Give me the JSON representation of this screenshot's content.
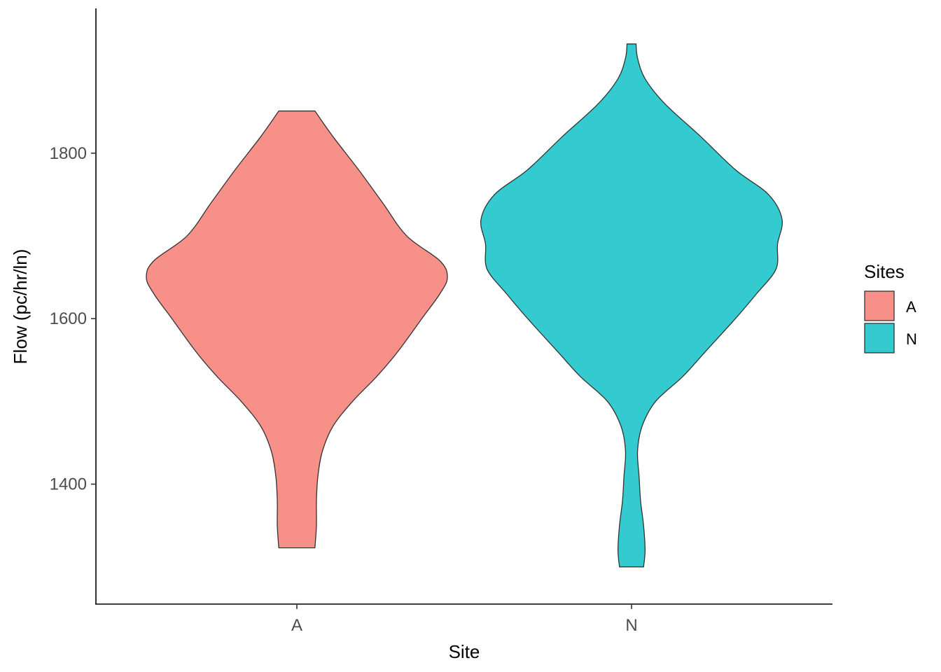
{
  "chart_data": {
    "type": "violin",
    "xlabel": "Site",
    "ylabel": "Flow (pc/hr/ln)",
    "ylim": [
      1255,
      1975
    ],
    "yticks": [
      1400,
      1600,
      1800
    ],
    "categories": [
      "A",
      "N"
    ],
    "legend": {
      "title": "Sites",
      "position": "right",
      "entries": [
        "A",
        "N"
      ]
    },
    "grid": false,
    "series": [
      {
        "name": "A",
        "color": "#F8908A",
        "min": 1323,
        "max": 1851,
        "density": [
          [
            1323,
            0.12
          ],
          [
            1350,
            0.13
          ],
          [
            1380,
            0.13
          ],
          [
            1410,
            0.14
          ],
          [
            1440,
            0.17
          ],
          [
            1470,
            0.24
          ],
          [
            1500,
            0.37
          ],
          [
            1530,
            0.53
          ],
          [
            1560,
            0.67
          ],
          [
            1600,
            0.83
          ],
          [
            1630,
            0.95
          ],
          [
            1650,
            1.0
          ],
          [
            1670,
            0.95
          ],
          [
            1700,
            0.73
          ],
          [
            1740,
            0.57
          ],
          [
            1780,
            0.41
          ],
          [
            1820,
            0.24
          ],
          [
            1851,
            0.12
          ]
        ]
      },
      {
        "name": "N",
        "color": "#33CBD0",
        "min": 1300,
        "max": 1932,
        "density": [
          [
            1300,
            0.08
          ],
          [
            1320,
            0.09
          ],
          [
            1350,
            0.08
          ],
          [
            1380,
            0.06
          ],
          [
            1410,
            0.05
          ],
          [
            1440,
            0.04
          ],
          [
            1470,
            0.07
          ],
          [
            1500,
            0.16
          ],
          [
            1530,
            0.34
          ],
          [
            1560,
            0.49
          ],
          [
            1600,
            0.69
          ],
          [
            1630,
            0.83
          ],
          [
            1660,
            0.96
          ],
          [
            1690,
            0.97
          ],
          [
            1720,
            1.0
          ],
          [
            1750,
            0.91
          ],
          [
            1780,
            0.69
          ],
          [
            1820,
            0.46
          ],
          [
            1860,
            0.22
          ],
          [
            1890,
            0.09
          ],
          [
            1915,
            0.04
          ],
          [
            1932,
            0.03
          ]
        ]
      }
    ]
  }
}
